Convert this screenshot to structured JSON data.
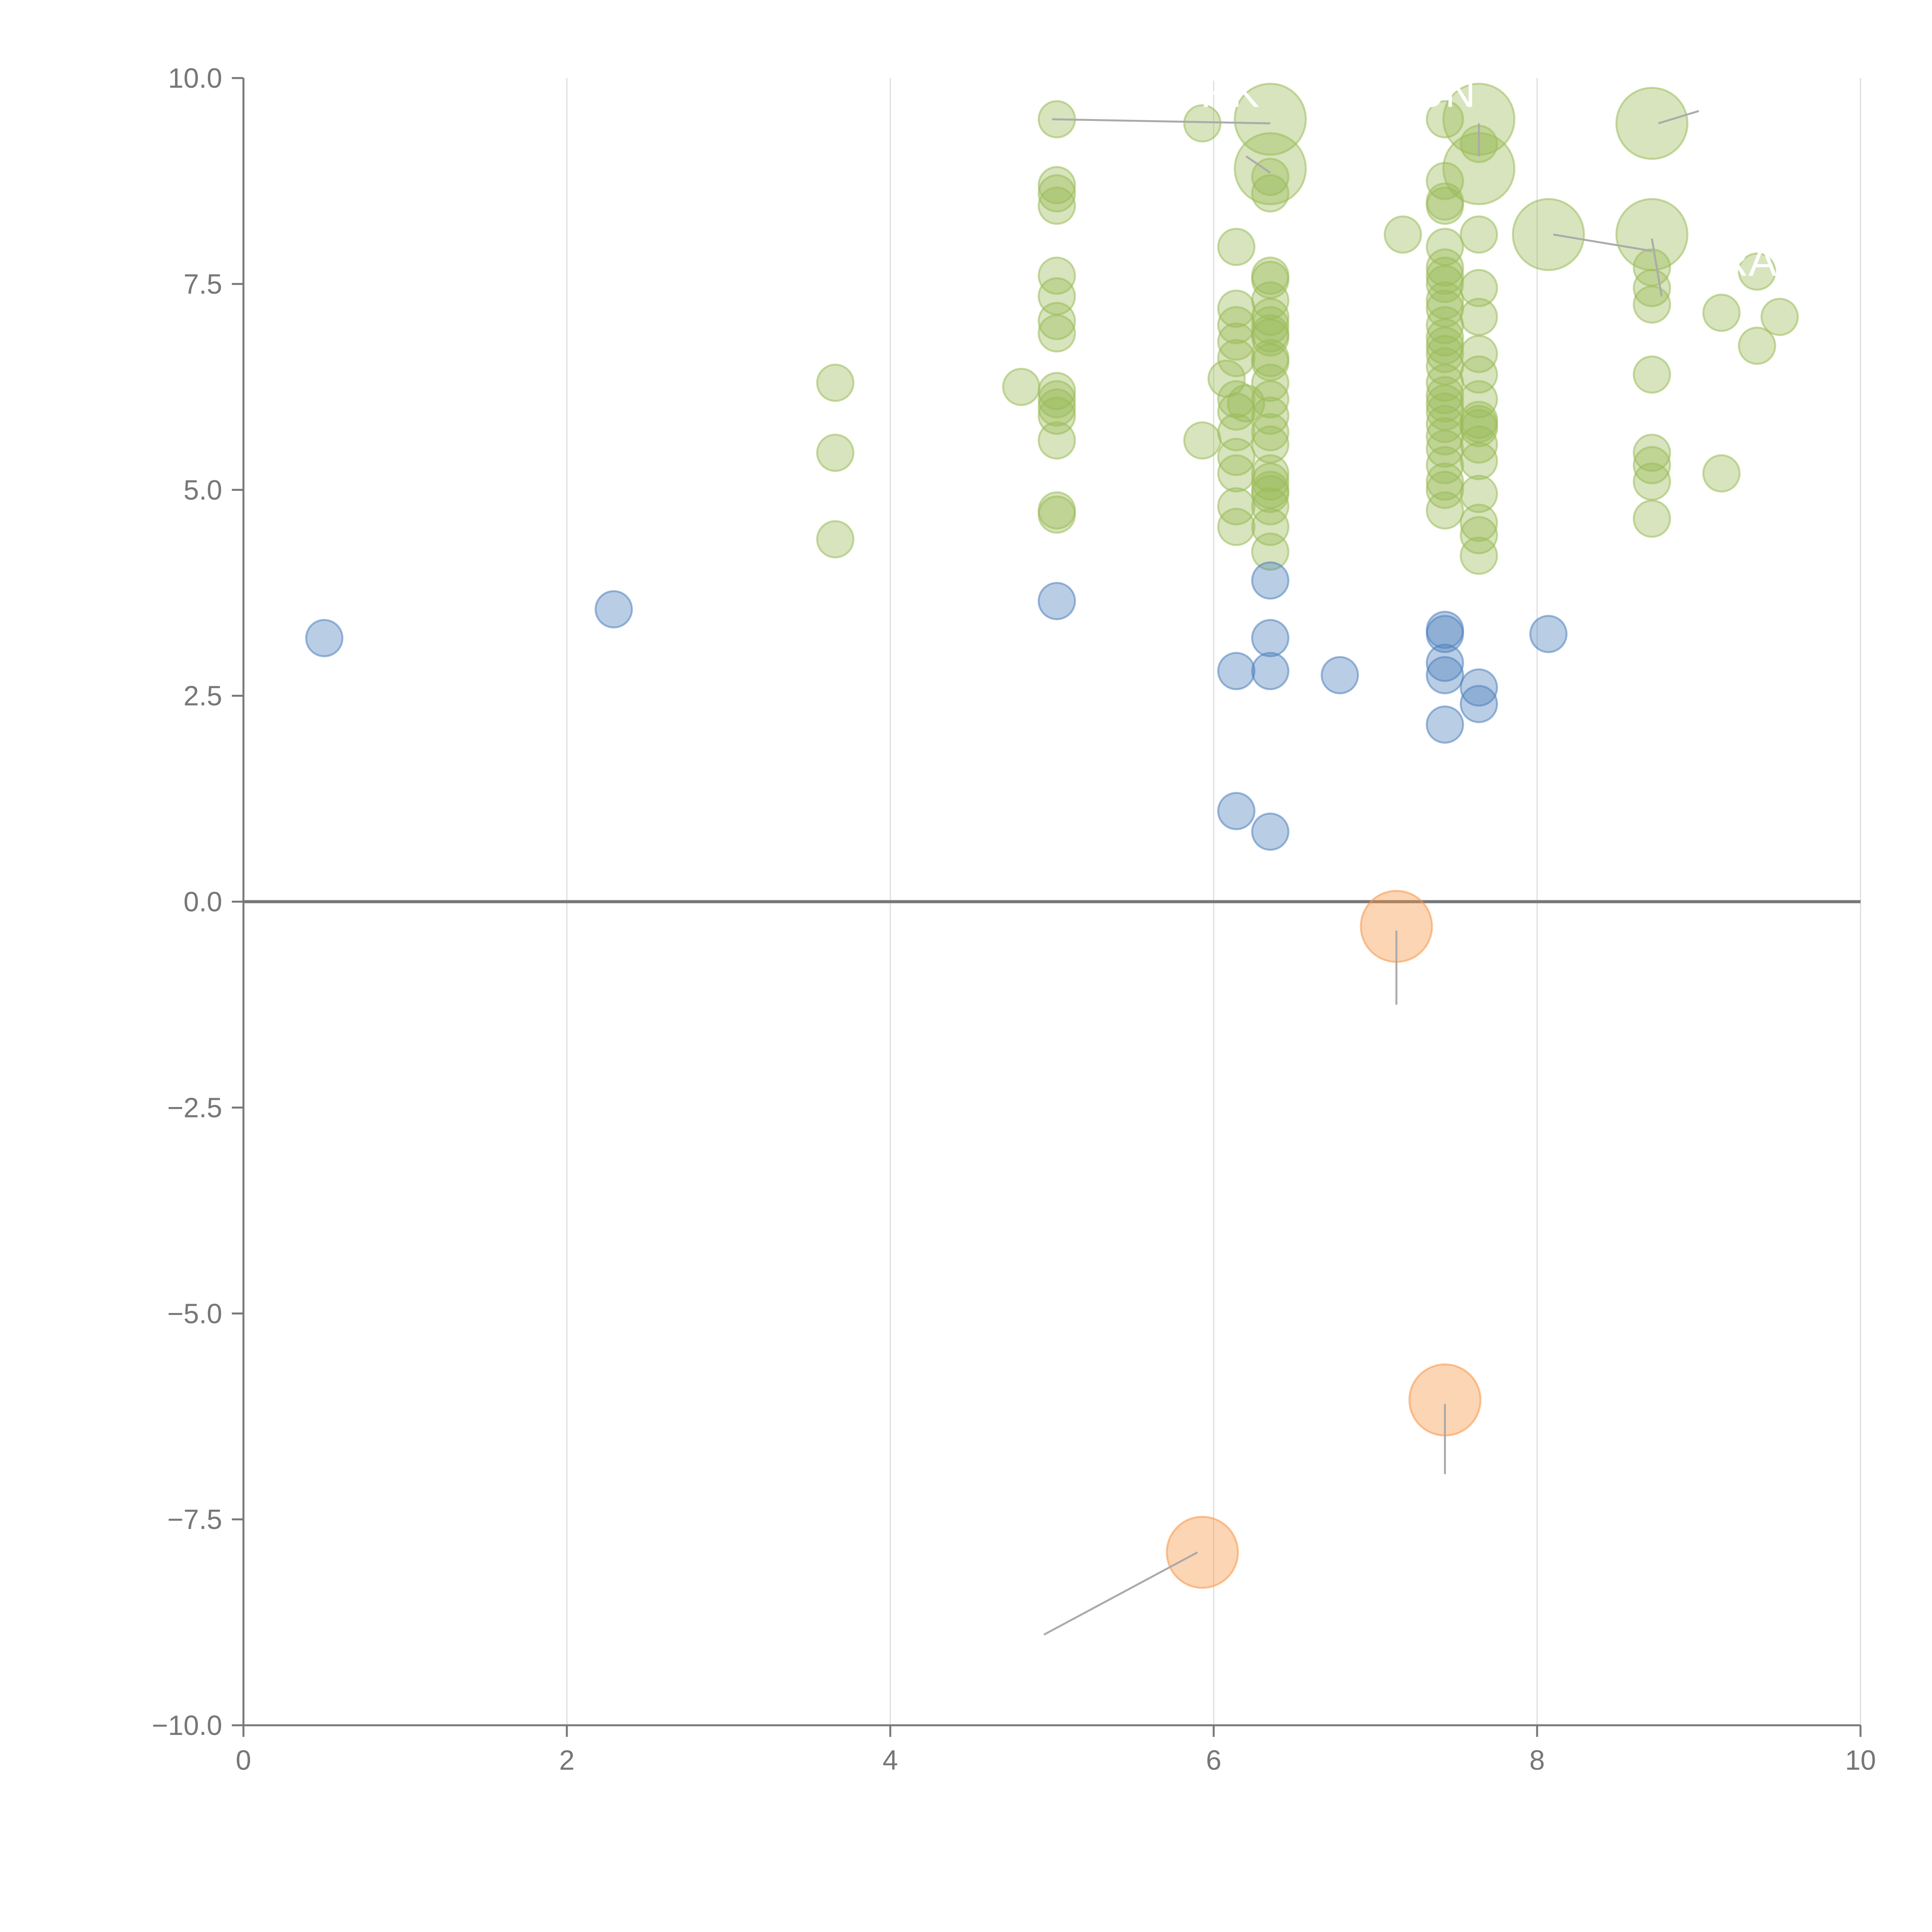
{
  "chart_data": {
    "type": "scatter",
    "title": "",
    "xlabel": "",
    "ylabel": "",
    "xlim": [
      0,
      10
    ],
    "ylim": [
      -10,
      10
    ],
    "grid": {
      "x": true,
      "y": false
    },
    "x_ticks": [
      "0",
      "2",
      "4",
      "6",
      "8",
      "10"
    ],
    "y_ticks": [
      "10.0",
      "7.5",
      "5.0",
      "2.5",
      "0.0",
      "−2.5",
      "−5.0",
      "−7.5",
      "−10.0"
    ],
    "zero_line": true,
    "series": [
      {
        "name": "green",
        "color": "#9bbb59",
        "fill_opacity": 0.4,
        "points": [
          [
            3.66,
            6.3
          ],
          [
            3.66,
            5.45
          ],
          [
            3.66,
            4.4
          ],
          [
            4.81,
            6.25
          ],
          [
            5.03,
            9.5
          ],
          [
            5.03,
            8.7
          ],
          [
            5.03,
            8.6
          ],
          [
            5.03,
            8.45
          ],
          [
            5.03,
            7.6
          ],
          [
            5.03,
            7.35
          ],
          [
            5.03,
            7.05
          ],
          [
            5.03,
            6.9
          ],
          [
            5.03,
            6.2
          ],
          [
            5.03,
            6.1
          ],
          [
            5.03,
            6.0
          ],
          [
            5.03,
            5.9
          ],
          [
            5.03,
            5.6
          ],
          [
            5.03,
            4.75
          ],
          [
            5.03,
            4.7
          ],
          [
            5.93,
            9.45
          ],
          [
            5.93,
            5.6
          ],
          [
            6.08,
            6.35
          ],
          [
            6.14,
            7.95
          ],
          [
            6.14,
            7.2
          ],
          [
            6.14,
            7.0
          ],
          [
            6.14,
            6.8
          ],
          [
            6.14,
            6.6
          ],
          [
            6.14,
            6.1
          ],
          [
            6.14,
            5.95
          ],
          [
            6.14,
            5.7
          ],
          [
            6.14,
            5.4
          ],
          [
            6.14,
            5.2
          ],
          [
            6.14,
            4.8
          ],
          [
            6.14,
            4.55
          ],
          [
            6.2,
            6.05
          ],
          [
            6.35,
            8.8
          ],
          [
            6.35,
            8.6
          ],
          [
            6.35,
            7.6
          ],
          [
            6.35,
            7.55
          ],
          [
            6.35,
            7.3
          ],
          [
            6.35,
            7.1
          ],
          [
            6.35,
            7.0
          ],
          [
            6.35,
            6.9
          ],
          [
            6.35,
            6.85
          ],
          [
            6.35,
            6.6
          ],
          [
            6.35,
            6.55
          ],
          [
            6.35,
            6.3
          ],
          [
            6.35,
            6.1
          ],
          [
            6.35,
            5.9
          ],
          [
            6.35,
            5.7
          ],
          [
            6.35,
            5.55
          ],
          [
            6.35,
            5.2
          ],
          [
            6.35,
            5.1
          ],
          [
            6.35,
            5.0
          ],
          [
            6.35,
            4.95
          ],
          [
            6.35,
            4.8
          ],
          [
            6.35,
            4.55
          ],
          [
            6.35,
            4.25
          ],
          [
            7.17,
            8.1
          ],
          [
            7.43,
            9.5
          ],
          [
            7.43,
            8.75
          ],
          [
            7.43,
            8.5
          ],
          [
            7.43,
            8.45
          ],
          [
            7.43,
            7.95
          ],
          [
            7.43,
            7.7
          ],
          [
            7.43,
            7.6
          ],
          [
            7.43,
            7.5
          ],
          [
            7.43,
            7.3
          ],
          [
            7.43,
            7.2
          ],
          [
            7.43,
            7.0
          ],
          [
            7.43,
            6.85
          ],
          [
            7.43,
            6.75
          ],
          [
            7.43,
            6.65
          ],
          [
            7.43,
            6.5
          ],
          [
            7.43,
            6.3
          ],
          [
            7.43,
            6.15
          ],
          [
            7.43,
            6.05
          ],
          [
            7.43,
            5.95
          ],
          [
            7.43,
            5.8
          ],
          [
            7.43,
            5.65
          ],
          [
            7.43,
            5.5
          ],
          [
            7.43,
            5.3
          ],
          [
            7.43,
            5.1
          ],
          [
            7.43,
            5.0
          ],
          [
            7.43,
            4.75
          ],
          [
            7.64,
            9.2
          ],
          [
            7.64,
            8.1
          ],
          [
            7.64,
            7.45
          ],
          [
            7.64,
            7.1
          ],
          [
            7.64,
            6.65
          ],
          [
            7.64,
            6.4
          ],
          [
            7.64,
            6.1
          ],
          [
            7.64,
            5.85
          ],
          [
            7.64,
            5.8
          ],
          [
            7.64,
            5.75
          ],
          [
            7.64,
            5.55
          ],
          [
            7.64,
            5.35
          ],
          [
            7.64,
            4.95
          ],
          [
            7.64,
            4.6
          ],
          [
            7.64,
            4.45
          ],
          [
            7.64,
            4.2
          ],
          [
            8.71,
            7.7
          ],
          [
            8.71,
            7.45
          ],
          [
            8.71,
            7.25
          ],
          [
            8.71,
            6.4
          ],
          [
            8.71,
            5.45
          ],
          [
            8.71,
            5.3
          ],
          [
            8.71,
            5.1
          ],
          [
            8.71,
            4.65
          ],
          [
            9.14,
            7.15
          ],
          [
            9.14,
            5.2
          ],
          [
            9.36,
            7.65
          ],
          [
            9.36,
            6.75
          ],
          [
            9.5,
            7.1
          ]
        ]
      },
      {
        "name": "green-large",
        "color": "#9bbb59",
        "fill_opacity": 0.4,
        "size": "large",
        "points": [
          [
            6.35,
            9.5
          ],
          [
            6.35,
            8.9
          ],
          [
            7.64,
            9.5
          ],
          [
            7.64,
            8.9
          ],
          [
            8.07,
            8.1
          ],
          [
            8.71,
            9.45
          ],
          [
            8.71,
            8.1
          ]
        ]
      },
      {
        "name": "blue",
        "color": "#4f81bd",
        "fill_opacity": 0.4,
        "points": [
          [
            0.5,
            3.2
          ],
          [
            2.29,
            3.55
          ],
          [
            5.03,
            3.65
          ],
          [
            6.14,
            2.8
          ],
          [
            6.14,
            1.1
          ],
          [
            6.35,
            3.9
          ],
          [
            6.35,
            3.2
          ],
          [
            6.35,
            2.8
          ],
          [
            6.35,
            0.85
          ],
          [
            6.78,
            2.75
          ],
          [
            7.43,
            3.3
          ],
          [
            7.43,
            3.25
          ],
          [
            7.43,
            2.9
          ],
          [
            7.43,
            2.75
          ],
          [
            7.43,
            2.15
          ],
          [
            7.64,
            2.6
          ],
          [
            7.64,
            2.4
          ],
          [
            8.07,
            3.25
          ]
        ]
      },
      {
        "name": "orange",
        "color": "#f79646",
        "fill_opacity": 0.4,
        "size": "large",
        "points": [
          [
            7.13,
            -0.3
          ],
          [
            7.43,
            -6.05
          ],
          [
            5.93,
            -7.9
          ]
        ]
      }
    ],
    "annotations": [
      {
        "text": "RK",
        "x": 6.1,
        "y": 9.65,
        "point": [
          6.35,
          9.5
        ]
      },
      {
        "text": "UN",
        "x": 7.43,
        "y": 9.65,
        "point": [
          7.64,
          9.5
        ]
      },
      {
        "text": "A",
        "x": 9.0,
        "y": 9.65,
        "point": [
          8.71,
          9.45
        ]
      },
      {
        "text": "RA",
        "x": 9.3,
        "y": 7.6,
        "point": [
          8.71,
          8.1
        ]
      }
    ],
    "leader_lines": [
      {
        "from": [
          7.13,
          -0.35
        ],
        "to": [
          7.13,
          -1.25
        ]
      },
      {
        "from": [
          7.43,
          -6.1
        ],
        "to": [
          7.43,
          -6.95
        ]
      },
      {
        "from": [
          5.9,
          -7.9
        ],
        "to": [
          4.95,
          -8.9
        ]
      },
      {
        "from": [
          5.0,
          9.5
        ],
        "to": [
          6.35,
          9.45
        ]
      },
      {
        "from": [
          6.2,
          9.05
        ],
        "to": [
          6.35,
          8.85
        ]
      },
      {
        "from": [
          7.64,
          9.45
        ],
        "to": [
          7.64,
          9.05
        ]
      },
      {
        "from": [
          8.1,
          8.1
        ],
        "to": [
          8.71,
          7.9
        ]
      },
      {
        "from": [
          8.71,
          8.05
        ],
        "to": [
          8.77,
          7.35
        ]
      },
      {
        "from": [
          8.75,
          9.45
        ],
        "to": [
          9.0,
          9.6
        ]
      }
    ]
  }
}
